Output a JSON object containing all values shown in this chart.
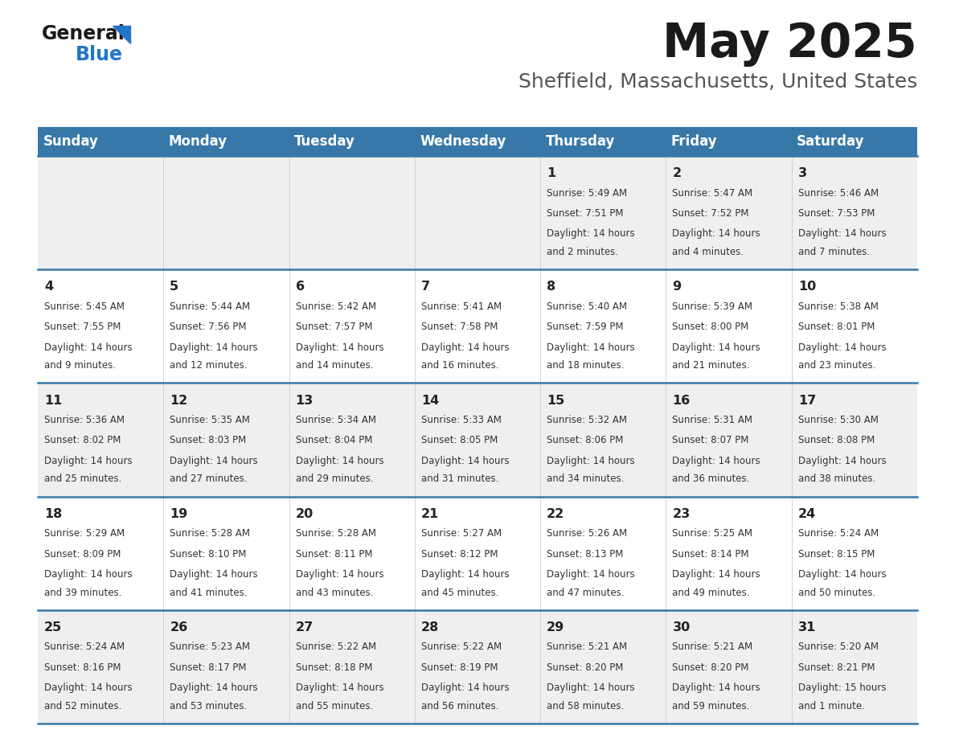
{
  "title": "May 2025",
  "subtitle": "Sheffield, Massachusetts, United States",
  "header_bg": "#3878a8",
  "header_text_color": "#ffffff",
  "row_bg_even": "#efefef",
  "row_bg_odd": "#ffffff",
  "day_number_color": "#222222",
  "cell_text_color": "#333333",
  "days_of_week": [
    "Sunday",
    "Monday",
    "Tuesday",
    "Wednesday",
    "Thursday",
    "Friday",
    "Saturday"
  ],
  "title_color": "#1a1a1a",
  "subtitle_color": "#555555",
  "grid_line_color": "#3878a8",
  "logo_general_color": "#1a1a1a",
  "logo_blue_color": "#2176c7",
  "calendar_data": [
    [
      {
        "day": "",
        "sunrise": "",
        "sunset": "",
        "daylight_line1": "",
        "daylight_line2": ""
      },
      {
        "day": "",
        "sunrise": "",
        "sunset": "",
        "daylight_line1": "",
        "daylight_line2": ""
      },
      {
        "day": "",
        "sunrise": "",
        "sunset": "",
        "daylight_line1": "",
        "daylight_line2": ""
      },
      {
        "day": "",
        "sunrise": "",
        "sunset": "",
        "daylight_line1": "",
        "daylight_line2": ""
      },
      {
        "day": "1",
        "sunrise": "5:49 AM",
        "sunset": "7:51 PM",
        "daylight_line1": "Daylight: 14 hours",
        "daylight_line2": "and 2 minutes."
      },
      {
        "day": "2",
        "sunrise": "5:47 AM",
        "sunset": "7:52 PM",
        "daylight_line1": "Daylight: 14 hours",
        "daylight_line2": "and 4 minutes."
      },
      {
        "day": "3",
        "sunrise": "5:46 AM",
        "sunset": "7:53 PM",
        "daylight_line1": "Daylight: 14 hours",
        "daylight_line2": "and 7 minutes."
      }
    ],
    [
      {
        "day": "4",
        "sunrise": "5:45 AM",
        "sunset": "7:55 PM",
        "daylight_line1": "Daylight: 14 hours",
        "daylight_line2": "and 9 minutes."
      },
      {
        "day": "5",
        "sunrise": "5:44 AM",
        "sunset": "7:56 PM",
        "daylight_line1": "Daylight: 14 hours",
        "daylight_line2": "and 12 minutes."
      },
      {
        "day": "6",
        "sunrise": "5:42 AM",
        "sunset": "7:57 PM",
        "daylight_line1": "Daylight: 14 hours",
        "daylight_line2": "and 14 minutes."
      },
      {
        "day": "7",
        "sunrise": "5:41 AM",
        "sunset": "7:58 PM",
        "daylight_line1": "Daylight: 14 hours",
        "daylight_line2": "and 16 minutes."
      },
      {
        "day": "8",
        "sunrise": "5:40 AM",
        "sunset": "7:59 PM",
        "daylight_line1": "Daylight: 14 hours",
        "daylight_line2": "and 18 minutes."
      },
      {
        "day": "9",
        "sunrise": "5:39 AM",
        "sunset": "8:00 PM",
        "daylight_line1": "Daylight: 14 hours",
        "daylight_line2": "and 21 minutes."
      },
      {
        "day": "10",
        "sunrise": "5:38 AM",
        "sunset": "8:01 PM",
        "daylight_line1": "Daylight: 14 hours",
        "daylight_line2": "and 23 minutes."
      }
    ],
    [
      {
        "day": "11",
        "sunrise": "5:36 AM",
        "sunset": "8:02 PM",
        "daylight_line1": "Daylight: 14 hours",
        "daylight_line2": "and 25 minutes."
      },
      {
        "day": "12",
        "sunrise": "5:35 AM",
        "sunset": "8:03 PM",
        "daylight_line1": "Daylight: 14 hours",
        "daylight_line2": "and 27 minutes."
      },
      {
        "day": "13",
        "sunrise": "5:34 AM",
        "sunset": "8:04 PM",
        "daylight_line1": "Daylight: 14 hours",
        "daylight_line2": "and 29 minutes."
      },
      {
        "day": "14",
        "sunrise": "5:33 AM",
        "sunset": "8:05 PM",
        "daylight_line1": "Daylight: 14 hours",
        "daylight_line2": "and 31 minutes."
      },
      {
        "day": "15",
        "sunrise": "5:32 AM",
        "sunset": "8:06 PM",
        "daylight_line1": "Daylight: 14 hours",
        "daylight_line2": "and 34 minutes."
      },
      {
        "day": "16",
        "sunrise": "5:31 AM",
        "sunset": "8:07 PM",
        "daylight_line1": "Daylight: 14 hours",
        "daylight_line2": "and 36 minutes."
      },
      {
        "day": "17",
        "sunrise": "5:30 AM",
        "sunset": "8:08 PM",
        "daylight_line1": "Daylight: 14 hours",
        "daylight_line2": "and 38 minutes."
      }
    ],
    [
      {
        "day": "18",
        "sunrise": "5:29 AM",
        "sunset": "8:09 PM",
        "daylight_line1": "Daylight: 14 hours",
        "daylight_line2": "and 39 minutes."
      },
      {
        "day": "19",
        "sunrise": "5:28 AM",
        "sunset": "8:10 PM",
        "daylight_line1": "Daylight: 14 hours",
        "daylight_line2": "and 41 minutes."
      },
      {
        "day": "20",
        "sunrise": "5:28 AM",
        "sunset": "8:11 PM",
        "daylight_line1": "Daylight: 14 hours",
        "daylight_line2": "and 43 minutes."
      },
      {
        "day": "21",
        "sunrise": "5:27 AM",
        "sunset": "8:12 PM",
        "daylight_line1": "Daylight: 14 hours",
        "daylight_line2": "and 45 minutes."
      },
      {
        "day": "22",
        "sunrise": "5:26 AM",
        "sunset": "8:13 PM",
        "daylight_line1": "Daylight: 14 hours",
        "daylight_line2": "and 47 minutes."
      },
      {
        "day": "23",
        "sunrise": "5:25 AM",
        "sunset": "8:14 PM",
        "daylight_line1": "Daylight: 14 hours",
        "daylight_line2": "and 49 minutes."
      },
      {
        "day": "24",
        "sunrise": "5:24 AM",
        "sunset": "8:15 PM",
        "daylight_line1": "Daylight: 14 hours",
        "daylight_line2": "and 50 minutes."
      }
    ],
    [
      {
        "day": "25",
        "sunrise": "5:24 AM",
        "sunset": "8:16 PM",
        "daylight_line1": "Daylight: 14 hours",
        "daylight_line2": "and 52 minutes."
      },
      {
        "day": "26",
        "sunrise": "5:23 AM",
        "sunset": "8:17 PM",
        "daylight_line1": "Daylight: 14 hours",
        "daylight_line2": "and 53 minutes."
      },
      {
        "day": "27",
        "sunrise": "5:22 AM",
        "sunset": "8:18 PM",
        "daylight_line1": "Daylight: 14 hours",
        "daylight_line2": "and 55 minutes."
      },
      {
        "day": "28",
        "sunrise": "5:22 AM",
        "sunset": "8:19 PM",
        "daylight_line1": "Daylight: 14 hours",
        "daylight_line2": "and 56 minutes."
      },
      {
        "day": "29",
        "sunrise": "5:21 AM",
        "sunset": "8:20 PM",
        "daylight_line1": "Daylight: 14 hours",
        "daylight_line2": "and 58 minutes."
      },
      {
        "day": "30",
        "sunrise": "5:21 AM",
        "sunset": "8:20 PM",
        "daylight_line1": "Daylight: 14 hours",
        "daylight_line2": "and 59 minutes."
      },
      {
        "day": "31",
        "sunrise": "5:20 AM",
        "sunset": "8:21 PM",
        "daylight_line1": "Daylight: 15 hours",
        "daylight_line2": "and 1 minute."
      }
    ]
  ]
}
